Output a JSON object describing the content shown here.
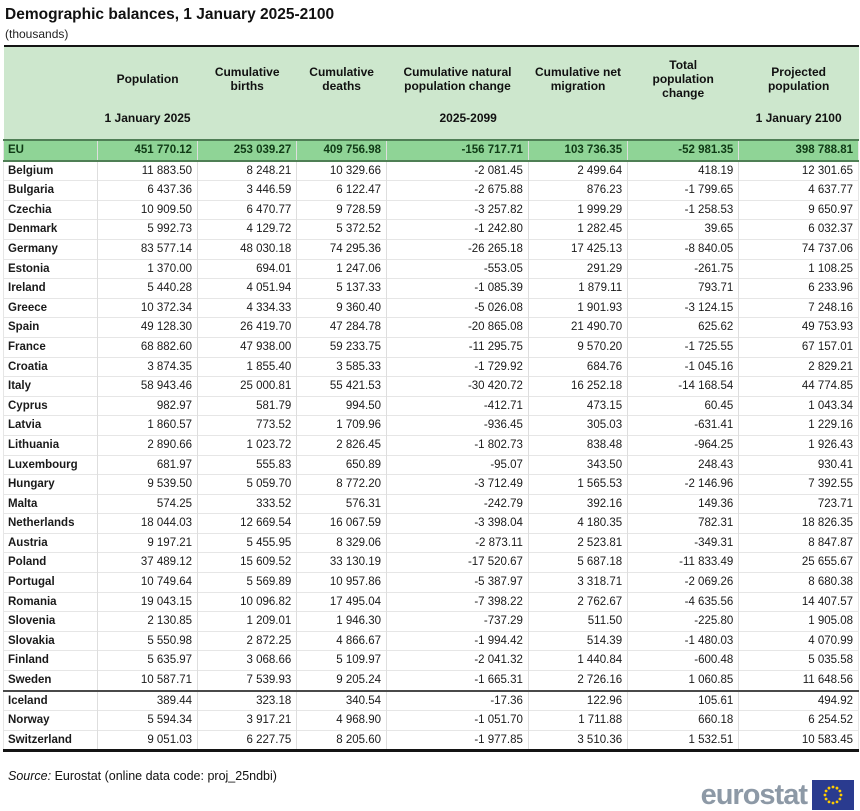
{
  "title": "Demographic balances, 1 January 2025-2100",
  "unit_note": "(thousands)",
  "chart_data": {
    "type": "table",
    "title": "Demographic balances, 1 January 2025-2100",
    "unit": "thousands",
    "columns": [
      "",
      "Population",
      "Cumulative births",
      "Cumulative deaths",
      "Cumulative natural population change",
      "Cumulative net migration",
      "Total population change",
      "Projected population"
    ],
    "periods": {
      "col1": "1 January 2025",
      "middle": "2025-2099",
      "last": "1 January 2100"
    },
    "rows": [
      {
        "name": "EU",
        "group": "eu",
        "values": [
          "451 770.12",
          "253 039.27",
          "409 756.98",
          "-156 717.71",
          "103 736.35",
          "-52 981.35",
          "398 788.81"
        ]
      },
      {
        "name": "Belgium",
        "group": "member",
        "values": [
          "11 883.50",
          "8 248.21",
          "10 329.66",
          "-2 081.45",
          "2 499.64",
          "418.19",
          "12 301.65"
        ]
      },
      {
        "name": "Bulgaria",
        "group": "member",
        "values": [
          "6 437.36",
          "3 446.59",
          "6 122.47",
          "-2 675.88",
          "876.23",
          "-1 799.65",
          "4 637.77"
        ]
      },
      {
        "name": "Czechia",
        "group": "member",
        "values": [
          "10 909.50",
          "6 470.77",
          "9 728.59",
          "-3 257.82",
          "1 999.29",
          "-1 258.53",
          "9 650.97"
        ]
      },
      {
        "name": "Denmark",
        "group": "member",
        "values": [
          "5 992.73",
          "4 129.72",
          "5 372.52",
          "-1 242.80",
          "1 282.45",
          "39.65",
          "6 032.37"
        ]
      },
      {
        "name": "Germany",
        "group": "member",
        "values": [
          "83 577.14",
          "48 030.18",
          "74 295.36",
          "-26 265.18",
          "17 425.13",
          "-8 840.05",
          "74 737.06"
        ]
      },
      {
        "name": "Estonia",
        "group": "member",
        "values": [
          "1 370.00",
          "694.01",
          "1 247.06",
          "-553.05",
          "291.29",
          "-261.75",
          "1 108.25"
        ]
      },
      {
        "name": "Ireland",
        "group": "member",
        "values": [
          "5 440.28",
          "4 051.94",
          "5 137.33",
          "-1 085.39",
          "1 879.11",
          "793.71",
          "6 233.96"
        ]
      },
      {
        "name": "Greece",
        "group": "member",
        "values": [
          "10 372.34",
          "4 334.33",
          "9 360.40",
          "-5 026.08",
          "1 901.93",
          "-3 124.15",
          "7 248.16"
        ]
      },
      {
        "name": "Spain",
        "group": "member",
        "values": [
          "49 128.30",
          "26 419.70",
          "47 284.78",
          "-20 865.08",
          "21 490.70",
          "625.62",
          "49 753.93"
        ]
      },
      {
        "name": "France",
        "group": "member",
        "values": [
          "68 882.60",
          "47 938.00",
          "59 233.75",
          "-11 295.75",
          "9 570.20",
          "-1 725.55",
          "67 157.01"
        ]
      },
      {
        "name": "Croatia",
        "group": "member",
        "values": [
          "3 874.35",
          "1 855.40",
          "3 585.33",
          "-1 729.92",
          "684.76",
          "-1 045.16",
          "2 829.21"
        ]
      },
      {
        "name": "Italy",
        "group": "member",
        "values": [
          "58 943.46",
          "25 000.81",
          "55 421.53",
          "-30 420.72",
          "16 252.18",
          "-14 168.54",
          "44 774.85"
        ]
      },
      {
        "name": "Cyprus",
        "group": "member",
        "values": [
          "982.97",
          "581.79",
          "994.50",
          "-412.71",
          "473.15",
          "60.45",
          "1 043.34"
        ]
      },
      {
        "name": "Latvia",
        "group": "member",
        "values": [
          "1 860.57",
          "773.52",
          "1 709.96",
          "-936.45",
          "305.03",
          "-631.41",
          "1 229.16"
        ]
      },
      {
        "name": "Lithuania",
        "group": "member",
        "values": [
          "2 890.66",
          "1 023.72",
          "2 826.45",
          "-1 802.73",
          "838.48",
          "-964.25",
          "1 926.43"
        ]
      },
      {
        "name": "Luxembourg",
        "group": "member",
        "values": [
          "681.97",
          "555.83",
          "650.89",
          "-95.07",
          "343.50",
          "248.43",
          "930.41"
        ]
      },
      {
        "name": "Hungary",
        "group": "member",
        "values": [
          "9 539.50",
          "5 059.70",
          "8 772.20",
          "-3 712.49",
          "1 565.53",
          "-2 146.96",
          "7 392.55"
        ]
      },
      {
        "name": "Malta",
        "group": "member",
        "values": [
          "574.25",
          "333.52",
          "576.31",
          "-242.79",
          "392.16",
          "149.36",
          "723.71"
        ]
      },
      {
        "name": "Netherlands",
        "group": "member",
        "values": [
          "18 044.03",
          "12 669.54",
          "16 067.59",
          "-3 398.04",
          "4 180.35",
          "782.31",
          "18 826.35"
        ]
      },
      {
        "name": "Austria",
        "group": "member",
        "values": [
          "9 197.21",
          "5 455.95",
          "8 329.06",
          "-2 873.11",
          "2 523.81",
          "-349.31",
          "8 847.87"
        ]
      },
      {
        "name": "Poland",
        "group": "member",
        "values": [
          "37 489.12",
          "15 609.52",
          "33 130.19",
          "-17 520.67",
          "5 687.18",
          "-11 833.49",
          "25 655.67"
        ]
      },
      {
        "name": "Portugal",
        "group": "member",
        "values": [
          "10 749.64",
          "5 569.89",
          "10 957.86",
          "-5 387.97",
          "3 318.71",
          "-2 069.26",
          "8 680.38"
        ]
      },
      {
        "name": "Romania",
        "group": "member",
        "values": [
          "19 043.15",
          "10 096.82",
          "17 495.04",
          "-7 398.22",
          "2 762.67",
          "-4 635.56",
          "14 407.57"
        ]
      },
      {
        "name": "Slovenia",
        "group": "member",
        "values": [
          "2 130.85",
          "1 209.01",
          "1 946.30",
          "-737.29",
          "511.50",
          "-225.80",
          "1 905.08"
        ]
      },
      {
        "name": "Slovakia",
        "group": "member",
        "values": [
          "5 550.98",
          "2 872.25",
          "4 866.67",
          "-1 994.42",
          "514.39",
          "-1 480.03",
          "4 070.99"
        ]
      },
      {
        "name": "Finland",
        "group": "member",
        "values": [
          "5 635.97",
          "3 068.66",
          "5 109.97",
          "-2 041.32",
          "1 440.84",
          "-600.48",
          "5 035.58"
        ]
      },
      {
        "name": "Sweden",
        "group": "member",
        "values": [
          "10 587.71",
          "7 539.93",
          "9 205.24",
          "-1 665.31",
          "2 726.16",
          "1 060.85",
          "11 648.56"
        ]
      },
      {
        "name": "Iceland",
        "group": "efta",
        "values": [
          "389.44",
          "323.18",
          "340.54",
          "-17.36",
          "122.96",
          "105.61",
          "494.92"
        ]
      },
      {
        "name": "Norway",
        "group": "efta",
        "values": [
          "5 594.34",
          "3 917.21",
          "4 968.90",
          "-1 051.70",
          "1 711.88",
          "660.18",
          "6 254.52"
        ]
      },
      {
        "name": "Switzerland",
        "group": "efta",
        "values": [
          "9 051.03",
          "6 227.75",
          "8 205.60",
          "-1 977.85",
          "3 510.36",
          "1 532.51",
          "10 583.45"
        ]
      }
    ]
  },
  "footer": {
    "source_label": "Source:",
    "source_text": "Eurostat (online data code: proj_25ndbi)"
  },
  "logo": {
    "text": "eurostat"
  },
  "colors": {
    "header_bg": "#cde7cd",
    "eu_row_bg": "#8fd496",
    "eu_row_text": "#0f3a15",
    "green_border": "#4f7f55",
    "logo_gray": "#8d99a6",
    "flag_blue": "#2a3b8f",
    "star_yellow": "#ffcc00"
  }
}
